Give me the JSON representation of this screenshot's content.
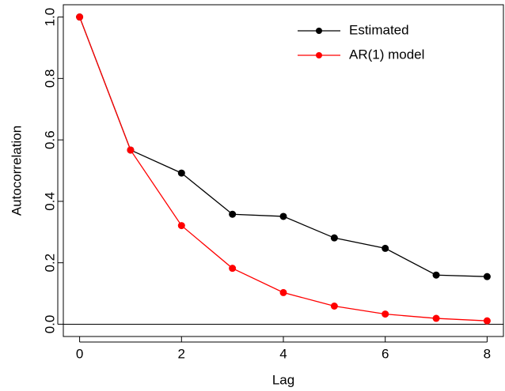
{
  "chart_data": {
    "type": "line",
    "x_label": "Lag",
    "y_label": "Autocorrelation",
    "x": [
      0,
      1,
      2,
      3,
      4,
      5,
      6,
      7,
      8
    ],
    "series": [
      {
        "name": "Estimated",
        "color": "#000000",
        "values": [
          1.0,
          0.567,
          0.492,
          0.358,
          0.351,
          0.281,
          0.247,
          0.16,
          0.155
        ]
      },
      {
        "name": "AR(1) model",
        "color": "#ff0000",
        "values": [
          1.0,
          0.567,
          0.321,
          0.182,
          0.103,
          0.059,
          0.033,
          0.019,
          0.011
        ]
      }
    ],
    "xlim": [
      -0.32,
      8.32
    ],
    "xticks": [
      0,
      2,
      4,
      6,
      8
    ],
    "ylim": [
      -0.04,
      1.04
    ],
    "yticks": [
      {
        "value": 0,
        "label": "0.0"
      },
      {
        "value": 0.2,
        "label": "0.2"
      },
      {
        "value": 0.4,
        "label": "0.4"
      },
      {
        "value": 0.6,
        "label": "0.6"
      },
      {
        "value": 0.8,
        "label": "0.8"
      },
      {
        "value": 1.0,
        "label": "1.0"
      }
    ],
    "reference_line": 0,
    "legend": "top-right"
  }
}
